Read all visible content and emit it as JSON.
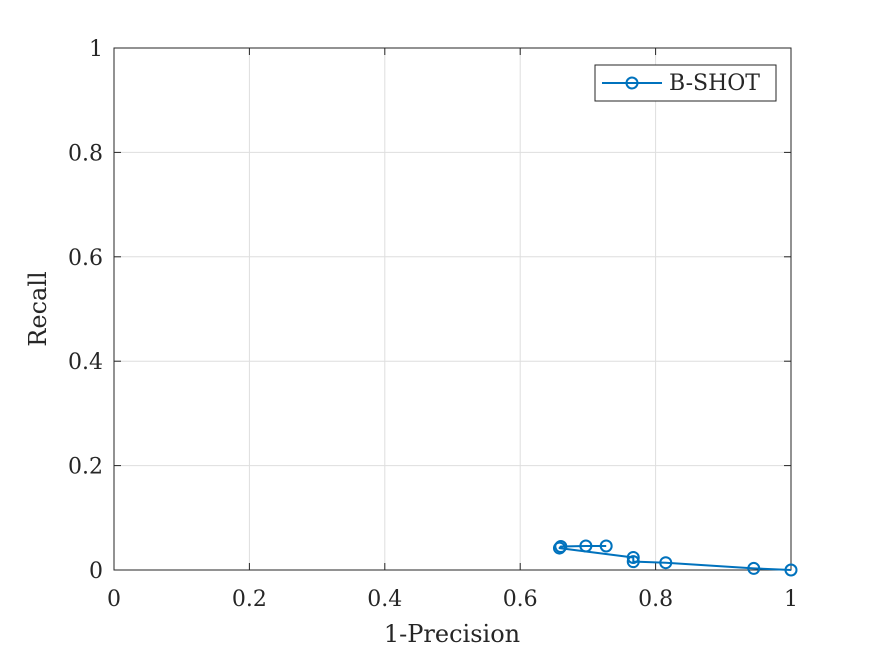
{
  "chart_data": {
    "type": "line",
    "title": "",
    "xlabel": "1-Precision",
    "ylabel": "Recall",
    "xlim": [
      0,
      1
    ],
    "ylim": [
      0,
      1
    ],
    "xticks": [
      "0",
      "0.2",
      "0.4",
      "0.6",
      "0.8",
      "1"
    ],
    "yticks": [
      "0",
      "0.2",
      "0.4",
      "0.6",
      "0.8",
      "1"
    ],
    "xtick_values": [
      0,
      0.2,
      0.4,
      0.6,
      0.8,
      1
    ],
    "ytick_values": [
      0,
      0.2,
      0.4,
      0.6,
      0.8,
      1
    ],
    "grid": true,
    "legend_position": "top-right",
    "series": [
      {
        "name": "B-SHOT",
        "color": "#0072BD",
        "marker": "circle",
        "x": [
          1.0,
          0.945,
          0.815,
          0.767,
          0.767,
          0.658,
          0.66,
          0.697,
          0.727
        ],
        "y": [
          0.0,
          0.003,
          0.014,
          0.016,
          0.024,
          0.042,
          0.045,
          0.046,
          0.046
        ]
      }
    ]
  }
}
